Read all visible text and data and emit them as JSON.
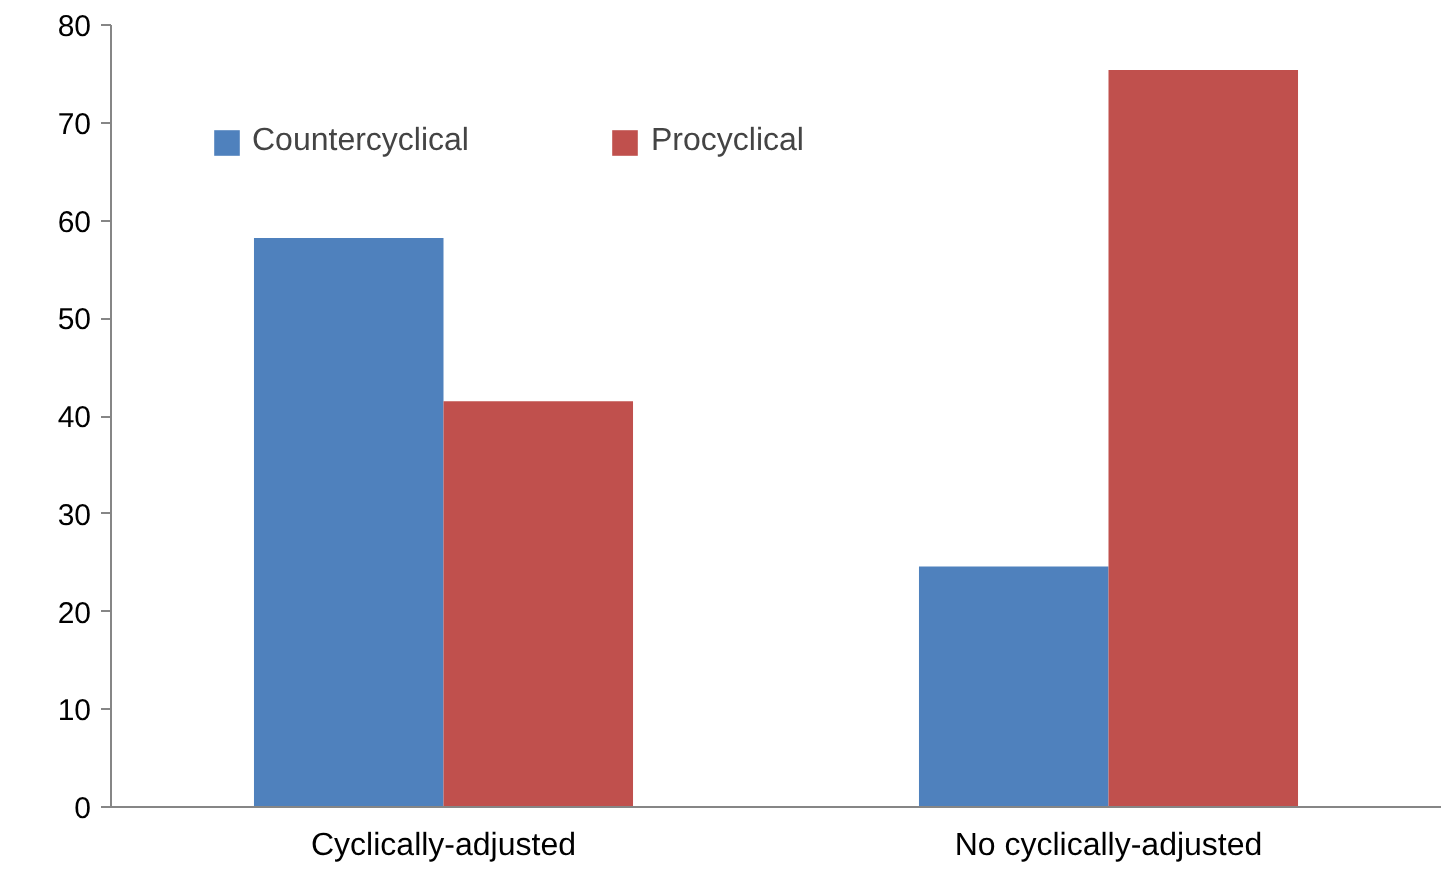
{
  "chart_data": {
    "type": "bar",
    "categories": [
      "Cyclically-adjusted",
      "No cyclically-adjusted"
    ],
    "series": [
      {
        "name": "Countercyclical",
        "color": "#4f81bd",
        "values": [
          58.2,
          24.6
        ]
      },
      {
        "name": "Procyclical",
        "color": "#c0504d",
        "values": [
          41.5,
          75.4
        ]
      }
    ],
    "ylim": [
      0,
      80
    ],
    "yticks": [
      0,
      10,
      20,
      30,
      40,
      50,
      60,
      70,
      80
    ],
    "grid": false,
    "legend": "top left"
  }
}
